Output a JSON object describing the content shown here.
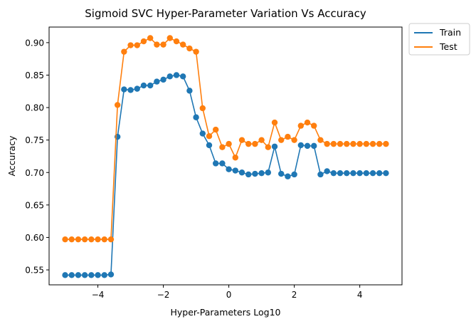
{
  "chart_data": {
    "type": "line",
    "title": "Sigmoid SVC Hyper-Parameter Variation Vs Accuracy",
    "xlabel": "Hyper-Parameters Log10",
    "ylabel": "Accuracy",
    "xlim": [
      -5.49,
      5.29
    ],
    "ylim": [
      0.527,
      0.924
    ],
    "xticks": [
      -4,
      -2,
      0,
      2,
      4
    ],
    "xtick_labels": [
      "−4",
      "−2",
      "0",
      "2",
      "4"
    ],
    "yticks": [
      0.55,
      0.6,
      0.65,
      0.7,
      0.75,
      0.8,
      0.85,
      0.9
    ],
    "ytick_labels": [
      "0.55",
      "0.60",
      "0.65",
      "0.70",
      "0.75",
      "0.80",
      "0.85",
      "0.90"
    ],
    "grid": false,
    "legend_position": "outside-top-right",
    "x": [
      -5.0,
      -4.8,
      -4.6,
      -4.4,
      -4.2,
      -4.0,
      -3.8,
      -3.6,
      -3.4,
      -3.2,
      -3.0,
      -2.8,
      -2.6,
      -2.4,
      -2.2,
      -2.0,
      -1.8,
      -1.6,
      -1.4,
      -1.2,
      -1.0,
      -0.8,
      -0.6,
      -0.4,
      -0.2,
      0.0,
      0.2,
      0.4,
      0.6,
      0.8,
      1.0,
      1.2,
      1.4,
      1.6,
      1.8,
      2.0,
      2.2,
      2.4,
      2.6,
      2.8,
      3.0,
      3.2,
      3.4,
      3.6,
      3.8,
      4.0,
      4.2,
      4.4,
      4.6,
      4.8
    ],
    "series": [
      {
        "name": "Train",
        "color": "#1f77b4",
        "values": [
          0.542,
          0.542,
          0.542,
          0.542,
          0.542,
          0.542,
          0.542,
          0.543,
          0.755,
          0.828,
          0.827,
          0.829,
          0.834,
          0.834,
          0.84,
          0.843,
          0.848,
          0.85,
          0.848,
          0.826,
          0.785,
          0.76,
          0.742,
          0.714,
          0.714,
          0.705,
          0.703,
          0.7,
          0.697,
          0.698,
          0.699,
          0.7,
          0.74,
          0.698,
          0.694,
          0.697,
          0.742,
          0.741,
          0.741,
          0.697,
          0.702,
          0.699,
          0.699,
          0.699,
          0.699,
          0.699,
          0.699,
          0.699,
          0.699,
          0.699
        ]
      },
      {
        "name": "Test",
        "color": "#ff7f0e",
        "values": [
          0.597,
          0.597,
          0.597,
          0.597,
          0.597,
          0.597,
          0.597,
          0.597,
          0.804,
          0.886,
          0.896,
          0.896,
          0.902,
          0.907,
          0.897,
          0.897,
          0.907,
          0.902,
          0.897,
          0.891,
          0.886,
          0.799,
          0.756,
          0.766,
          0.739,
          0.744,
          0.723,
          0.75,
          0.744,
          0.744,
          0.75,
          0.739,
          0.777,
          0.75,
          0.755,
          0.75,
          0.772,
          0.777,
          0.772,
          0.75,
          0.744,
          0.744,
          0.744,
          0.744,
          0.744,
          0.744,
          0.744,
          0.744,
          0.744,
          0.744
        ]
      }
    ]
  }
}
